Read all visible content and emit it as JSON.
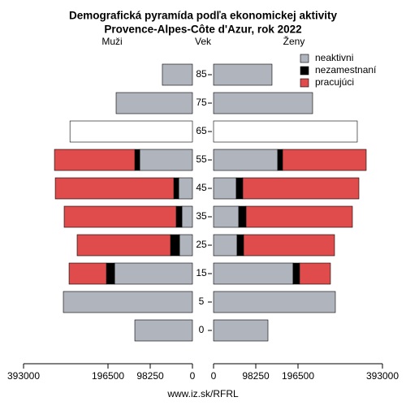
{
  "chart_data": {
    "type": "pyramid",
    "title": "Demografická pyramída podľa ekonomickej aktivity",
    "subtitle": "Provence-Alpes-Côte d'Azur, rok 2022",
    "left_label": "Muži",
    "center_label": "Vek",
    "right_label": "Ženy",
    "categories": [
      "0",
      "5",
      "15",
      "25",
      "35",
      "45",
      "55",
      "65",
      "75",
      "85"
    ],
    "series": [
      {
        "name": "neaktivni",
        "color": "#b0b5bd",
        "colors": [
          "#b0b5bd",
          "#b0b5bd",
          "#b0b5bd",
          "#b0b5bd",
          "#b0b5bd",
          "#b0b5bd",
          "#b0b5bd",
          "#ffffff",
          "#b0b5bd",
          "#b0b5bd"
        ],
        "men": [
          134100,
          300400,
          181300,
          30200,
          24600,
          32100,
          122800,
          285000,
          177600,
          70000
        ],
        "women": [
          126600,
          283400,
          185100,
          54800,
          58600,
          52900,
          149300,
          334400,
          230500,
          136000
        ]
      },
      {
        "name": "nezamestnaní",
        "color": "#000000",
        "men": [
          null,
          null,
          18900,
          20800,
          13200,
          11300,
          11300,
          null,
          null,
          null
        ],
        "women": [
          null,
          null,
          15100,
          15100,
          17000,
          15100,
          11300,
          null,
          null,
          null
        ]
      },
      {
        "name": "pracujúci",
        "color": "#e04b4b",
        "men": [
          null,
          null,
          86900,
          217300,
          260700,
          275800,
          187000,
          null,
          null,
          null
        ],
        "women": [
          null,
          null,
          71800,
          211600,
          247500,
          270200,
          194600,
          null,
          null,
          null
        ]
      }
    ],
    "xlim": [
      0,
      393000
    ],
    "xticks": [
      0,
      98250,
      196500,
      393000
    ],
    "source": "www.iz.sk/RFRL"
  }
}
